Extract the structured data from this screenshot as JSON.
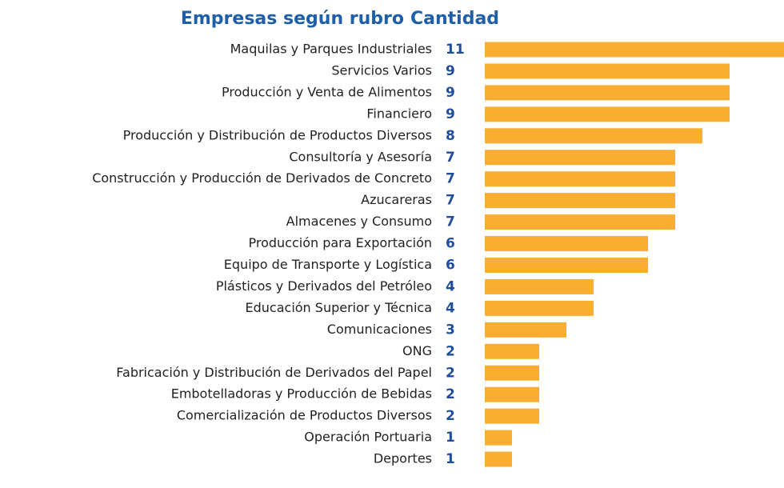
{
  "chart_data": {
    "type": "bar",
    "orientation": "horizontal",
    "headers": [
      "Empresas según rubro",
      "Cantidad"
    ],
    "categories": [
      "Maquilas y Parques Industriales",
      "Servicios Varios",
      "Producción y Venta de Alimentos",
      "Financiero",
      "Producción y Distribución de Productos Diversos",
      "Consultoría y Asesoría",
      "Construcción y Producción de Derivados de Concreto",
      "Azucareras",
      "Almacenes y Consumo",
      "Producción para Exportación",
      "Equipo de Transporte y Logística",
      "Plásticos y Derivados del Petróleo",
      "Educación Superior y Técnica",
      "Comunicaciones",
      "ONG",
      "Fabricación y Distribución de Derivados del Papel",
      "Embotelladoras y Producción de Bebidas",
      "Comercialización de Productos Diversos",
      "Operación Portuaria",
      "Deportes"
    ],
    "values": [
      11,
      9,
      9,
      9,
      8,
      7,
      7,
      7,
      7,
      6,
      6,
      4,
      4,
      3,
      2,
      2,
      2,
      2,
      1,
      1
    ],
    "color": "#f9ae32"
  }
}
